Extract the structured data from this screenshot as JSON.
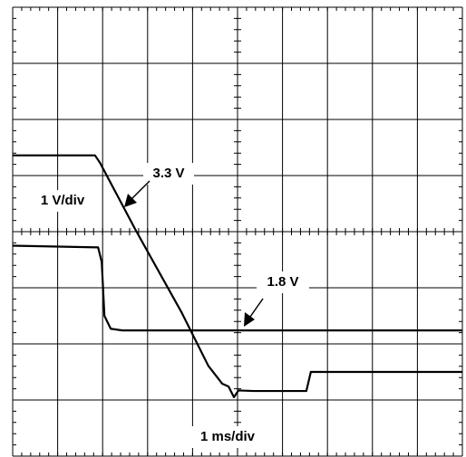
{
  "chart_data": {
    "type": "line",
    "x_label": "1 ms/div",
    "y_label": "1 V/div",
    "xlim": [
      0,
      10
    ],
    "xticks": [
      0,
      1,
      2,
      3,
      4,
      5,
      6,
      7,
      8,
      9,
      10
    ],
    "ylim": [
      -4,
      4
    ],
    "yticks": [
      -4,
      -3,
      -2,
      -1,
      0,
      1,
      2,
      3,
      4
    ],
    "grid": true,
    "series": [
      {
        "name": "3.3 V",
        "color": "#000000",
        "x": [
          0,
          1.83,
          1.94,
          2.74,
          3.75,
          4.35,
          4.66,
          4.8,
          4.92,
          5.02,
          5.36,
          6.53,
          6.63,
          6.77,
          10
        ],
        "values": [
          1.36,
          1.36,
          1.23,
          0.02,
          -1.43,
          -2.39,
          -2.71,
          -2.76,
          -2.95,
          -2.83,
          -2.84,
          -2.84,
          -2.5,
          -2.5,
          -2.5
        ]
      },
      {
        "name": "1.8 V",
        "color": "#000000",
        "x": [
          0,
          1.9,
          1.98,
          2.04,
          2.18,
          2.44,
          10
        ],
        "values": [
          -0.25,
          -0.28,
          -0.54,
          -1.5,
          -1.73,
          -1.76,
          -1.76
        ]
      }
    ]
  }
}
